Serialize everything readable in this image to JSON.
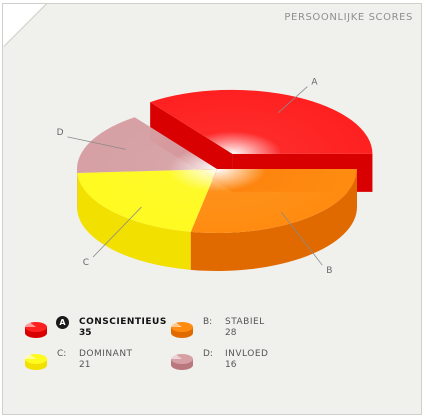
{
  "header": {
    "title": "PERSOONLIJKE SCORES"
  },
  "chart_data": {
    "type": "pie",
    "title": "PERSOONLIJKE SCORES",
    "slices": [
      {
        "letter": "A",
        "name": "CONSCIENTIEUS",
        "value": 35,
        "color": "#ff2020",
        "side_color": "#d80000",
        "exploded": true,
        "highlight": true
      },
      {
        "letter": "B",
        "name": "STABIEL",
        "value": 28,
        "color": "#ff8c10",
        "side_color": "#e06a00",
        "exploded": false,
        "highlight": false
      },
      {
        "letter": "C",
        "name": "DOMINANT",
        "value": 21,
        "color": "#fffa20",
        "side_color": "#f2e000",
        "exploded": false,
        "highlight": false
      },
      {
        "letter": "D",
        "name": "INVLOED",
        "value": 16,
        "color": "#d6a0a4",
        "side_color": "#b8787e",
        "exploded": false,
        "highlight": false
      }
    ]
  }
}
